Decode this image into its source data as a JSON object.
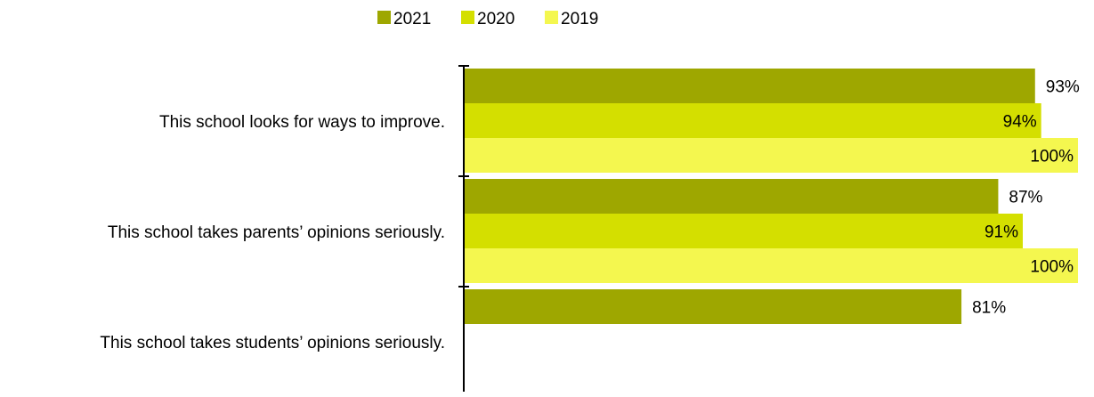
{
  "chart_data": {
    "type": "bar",
    "orientation": "horizontal",
    "categories": [
      "This school looks for ways to improve.",
      "This school takes parents’ opinions seriously.",
      "This school takes students’ opinions seriously."
    ],
    "series": [
      {
        "name": "2021",
        "color": "#9ea700",
        "values": [
          93,
          87,
          81
        ],
        "labels": [
          "93%",
          "87%",
          "81%"
        ]
      },
      {
        "name": "2020",
        "color": "#d4df00",
        "values": [
          94,
          91,
          null
        ],
        "labels": [
          "94%",
          "91%",
          ""
        ]
      },
      {
        "name": "2019",
        "color": "#f4f74f",
        "values": [
          100,
          100,
          null
        ],
        "labels": [
          "100%",
          "100%",
          ""
        ]
      }
    ],
    "xlim": [
      0,
      100
    ],
    "value_suffix": "%",
    "legend": "top-center",
    "grid": false,
    "title": "",
    "xlabel": "",
    "ylabel": ""
  }
}
